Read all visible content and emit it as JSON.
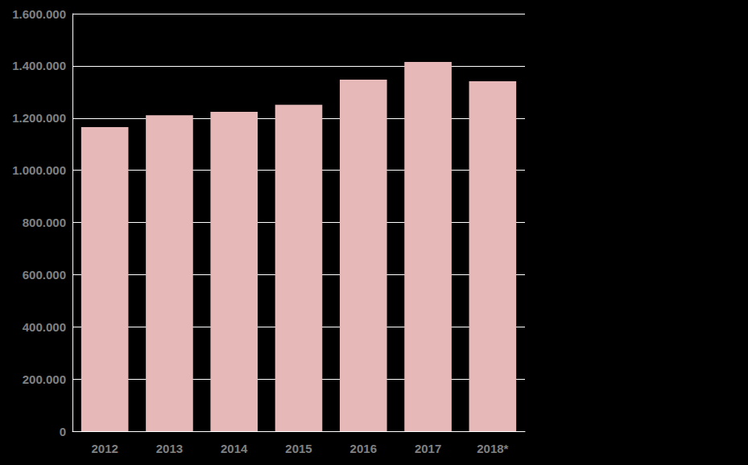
{
  "chart_data": {
    "type": "bar",
    "categories": [
      "2012",
      "2013",
      "2014",
      "2015",
      "2016",
      "2017",
      "2018*"
    ],
    "values": [
      1165000,
      1211000,
      1224000,
      1251000,
      1347000,
      1415000,
      1341000
    ],
    "color": "#e6b8b7",
    "ylim": [
      0,
      1600000
    ],
    "yticks": [
      0,
      {
        "value": 200000,
        "label": "200.000"
      },
      {
        "value": 400000,
        "label": "400.000"
      },
      {
        "value": 600000,
        "label": "600.000"
      },
      {
        "value": 800000,
        "label": "800.000"
      },
      {
        "value": 1000000,
        "label": "1.000.000"
      },
      {
        "value": 1200000,
        "label": "1.200.000"
      },
      {
        "value": 1400000,
        "label": "1.400.000"
      },
      {
        "value": 1600000,
        "label": "1.600.000"
      }
    ],
    "grid": true
  }
}
